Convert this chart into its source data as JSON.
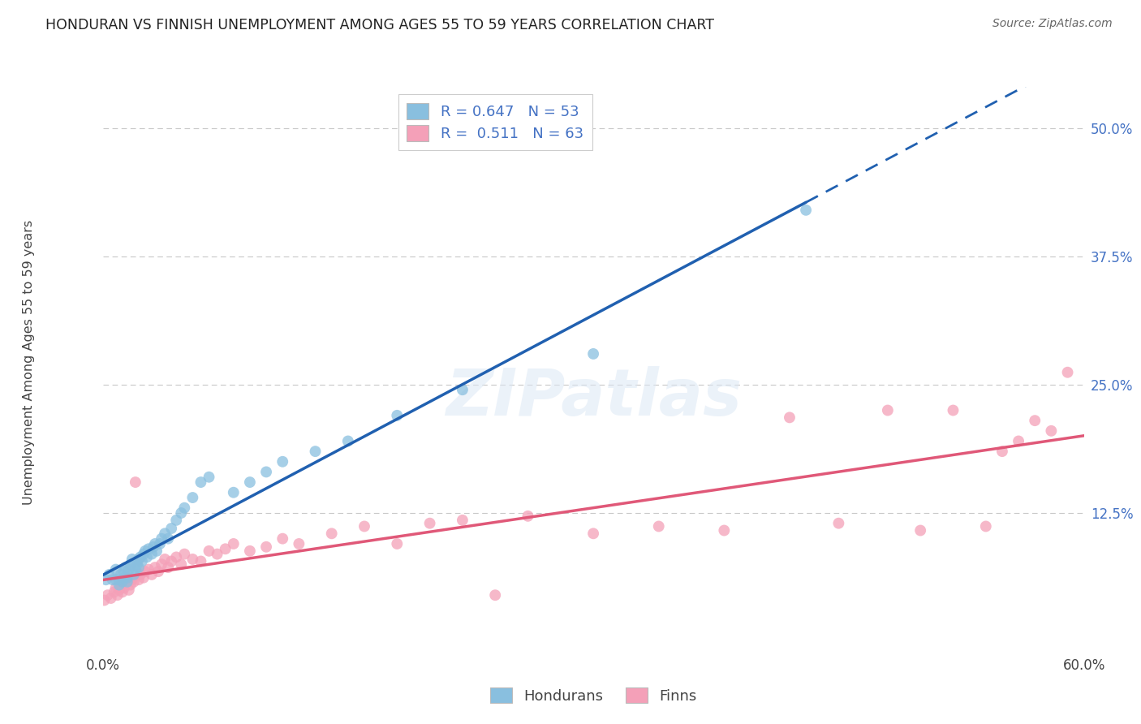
{
  "title": "HONDURAN VS FINNISH UNEMPLOYMENT AMONG AGES 55 TO 59 YEARS CORRELATION CHART",
  "source": "Source: ZipAtlas.com",
  "ylabel": "Unemployment Among Ages 55 to 59 years",
  "xlim": [
    0.0,
    0.6
  ],
  "ylim": [
    -0.01,
    0.54
  ],
  "xticks": [
    0.0,
    0.1,
    0.2,
    0.3,
    0.4,
    0.5,
    0.6
  ],
  "yticks": [
    0.0,
    0.125,
    0.25,
    0.375,
    0.5
  ],
  "ytick_labels": [
    "",
    "12.5%",
    "25.0%",
    "37.5%",
    "50.0%"
  ],
  "xtick_labels": [
    "0.0%",
    "",
    "",
    "",
    "",
    "",
    "60.0%"
  ],
  "grid_color": "#c8c8c8",
  "background_color": "#ffffff",
  "honduran_color": "#89bfdf",
  "finn_color": "#f4a0b8",
  "honduran_line_color": "#2060b0",
  "finn_line_color": "#e05878",
  "R_honduran": 0.647,
  "N_honduran": 53,
  "R_finn": 0.511,
  "N_finn": 63,
  "legend_label_honduran": "Hondurans",
  "legend_label_finn": "Finns",
  "honduran_x": [
    0.002,
    0.004,
    0.006,
    0.008,
    0.008,
    0.01,
    0.01,
    0.011,
    0.012,
    0.013,
    0.013,
    0.014,
    0.015,
    0.015,
    0.016,
    0.017,
    0.018,
    0.019,
    0.02,
    0.021,
    0.022,
    0.022,
    0.023,
    0.024,
    0.025,
    0.026,
    0.027,
    0.028,
    0.03,
    0.031,
    0.032,
    0.033,
    0.035,
    0.036,
    0.038,
    0.04,
    0.042,
    0.045,
    0.048,
    0.05,
    0.055,
    0.06,
    0.065,
    0.08,
    0.09,
    0.1,
    0.11,
    0.13,
    0.15,
    0.18,
    0.22,
    0.3,
    0.43
  ],
  "honduran_y": [
    0.06,
    0.065,
    0.06,
    0.06,
    0.07,
    0.055,
    0.06,
    0.065,
    0.058,
    0.062,
    0.068,
    0.072,
    0.058,
    0.062,
    0.07,
    0.075,
    0.08,
    0.065,
    0.07,
    0.075,
    0.072,
    0.08,
    0.082,
    0.078,
    0.085,
    0.088,
    0.082,
    0.09,
    0.085,
    0.092,
    0.095,
    0.088,
    0.095,
    0.1,
    0.105,
    0.1,
    0.11,
    0.118,
    0.125,
    0.13,
    0.14,
    0.155,
    0.16,
    0.145,
    0.155,
    0.165,
    0.175,
    0.185,
    0.195,
    0.22,
    0.245,
    0.28,
    0.42
  ],
  "finn_x": [
    0.001,
    0.003,
    0.005,
    0.007,
    0.008,
    0.009,
    0.01,
    0.011,
    0.012,
    0.013,
    0.014,
    0.015,
    0.016,
    0.017,
    0.018,
    0.019,
    0.02,
    0.022,
    0.023,
    0.025,
    0.026,
    0.028,
    0.03,
    0.032,
    0.034,
    0.036,
    0.038,
    0.04,
    0.042,
    0.045,
    0.048,
    0.05,
    0.055,
    0.06,
    0.065,
    0.07,
    0.075,
    0.08,
    0.09,
    0.1,
    0.11,
    0.12,
    0.14,
    0.16,
    0.18,
    0.2,
    0.22,
    0.24,
    0.26,
    0.3,
    0.34,
    0.38,
    0.42,
    0.45,
    0.48,
    0.5,
    0.52,
    0.54,
    0.55,
    0.56,
    0.57,
    0.58,
    0.59
  ],
  "finn_y": [
    0.04,
    0.045,
    0.042,
    0.048,
    0.052,
    0.045,
    0.05,
    0.055,
    0.048,
    0.052,
    0.058,
    0.06,
    0.05,
    0.055,
    0.06,
    0.058,
    0.155,
    0.06,
    0.065,
    0.062,
    0.068,
    0.07,
    0.065,
    0.072,
    0.068,
    0.075,
    0.08,
    0.072,
    0.078,
    0.082,
    0.075,
    0.085,
    0.08,
    0.078,
    0.088,
    0.085,
    0.09,
    0.095,
    0.088,
    0.092,
    0.1,
    0.095,
    0.105,
    0.112,
    0.095,
    0.115,
    0.118,
    0.045,
    0.122,
    0.105,
    0.112,
    0.108,
    0.218,
    0.115,
    0.225,
    0.108,
    0.225,
    0.112,
    0.185,
    0.195,
    0.215,
    0.205,
    0.262
  ]
}
